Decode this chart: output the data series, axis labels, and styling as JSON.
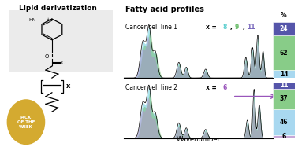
{
  "title_left": "Lipid derivatization",
  "title_right": "Fatty acid profiles",
  "xlabel": "Wavenumber",
  "cell_line_1_label": "Cancer cell line 1",
  "cell_line_2_label": "Cancer cell line 2",
  "x_annotation_2_color": "#9b59b6",
  "percent_label": "%",
  "bar1_values": [
    14,
    62,
    24
  ],
  "bar1_colors": [
    "#a8d8f0",
    "#88cc88",
    "#5555aa"
  ],
  "bar2_values": [
    6,
    46,
    37,
    11
  ],
  "bar2_colors": [
    "#c8a8d8",
    "#a8d8f0",
    "#88cc88",
    "#5555aa"
  ],
  "bar1_labels": [
    "14",
    "62",
    "24"
  ],
  "bar2_labels": [
    "6",
    "46",
    "37",
    "11"
  ],
  "bg_color": "#ffffff",
  "lipid_box_color": "#ebebeb",
  "pick_circle_color": "#d4aa30",
  "pick_text": "PICK\nOF THE\nWEEK",
  "color_8": "#5ecfcf",
  "color_9": "#66bb66",
  "color_11": "#7766bb",
  "color_6": "#9955bb",
  "fill_blue": "#66ccdd",
  "fill_green": "#77bb77",
  "fill_purple": "#aa88cc",
  "fill_purple2": "#bb88cc"
}
